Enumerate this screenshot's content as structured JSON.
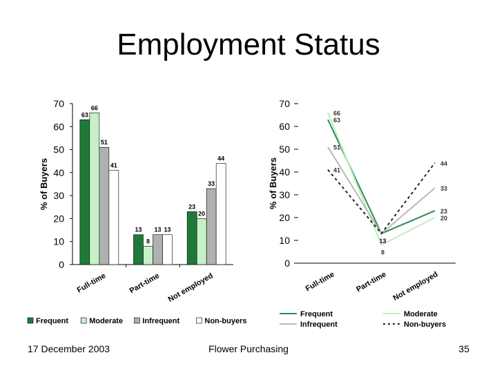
{
  "slide": {
    "title": "Employment Status",
    "footer_date": "17 December 2003",
    "footer_center": "Flower Purchasing",
    "page_number": "35"
  },
  "chart_data": [
    {
      "type": "bar",
      "categories": [
        "Full-time",
        "Part-time",
        "Not employed"
      ],
      "ylabel": "% of Buyers",
      "ylim": [
        0,
        70
      ],
      "yticks": [
        0,
        10,
        20,
        30,
        40,
        50,
        60,
        70
      ],
      "legend_position": "bottom",
      "series": [
        {
          "name": "Frequent",
          "values": [
            63,
            13,
            23
          ],
          "color": "#1f7a3a"
        },
        {
          "name": "Moderate",
          "values": [
            66,
            8,
            20
          ],
          "color": "#c6f0c6"
        },
        {
          "name": "Infrequent",
          "values": [
            51,
            13,
            33
          ],
          "color": "#b0b0b0"
        },
        {
          "name": "Non-buyers",
          "values": [
            41,
            13,
            44
          ],
          "color": "#ffffff"
        }
      ]
    },
    {
      "type": "line",
      "categories": [
        "Full-time",
        "Part-time",
        "Not employed"
      ],
      "ylabel": "% of Buyers",
      "ylim": [
        0,
        70
      ],
      "yticks": [
        0,
        10,
        20,
        30,
        40,
        50,
        60,
        70
      ],
      "legend_position": "bottom",
      "series": [
        {
          "name": "Frequent",
          "values": [
            63,
            13,
            23
          ],
          "color": "#2e8b57",
          "dash": "solid"
        },
        {
          "name": "Moderate",
          "values": [
            66,
            8,
            20
          ],
          "color": "#b8f0b8",
          "dash": "solid"
        },
        {
          "name": "Infrequent",
          "values": [
            51,
            13,
            33
          ],
          "color": "#b8b8b8",
          "dash": "solid"
        },
        {
          "name": "Non-buyers",
          "values": [
            41,
            13,
            44
          ],
          "color": "#222222",
          "dash": "dashed"
        }
      ]
    }
  ]
}
